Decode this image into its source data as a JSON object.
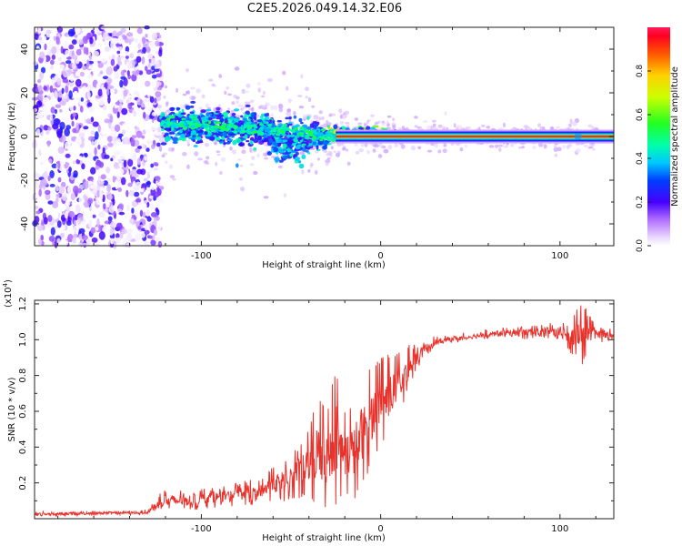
{
  "title": "C2E5.2026.049.14.32.E06",
  "colors": {
    "snr_line": "#e8322c",
    "axis": "#222222"
  },
  "chart_data": [
    {
      "type": "heatmap",
      "xlabel": "Height of straight line (km)",
      "ylabel": "Frequency (Hz)",
      "xlim": [
        -193,
        130
      ],
      "ylim": [
        -50,
        50
      ],
      "x_ticks": [
        -100,
        0,
        100
      ],
      "x_tick_labels": [
        "-100",
        "0",
        "100"
      ],
      "y_ticks": [
        -40,
        -20,
        0,
        20,
        40
      ],
      "y_tick_labels": [
        "-40",
        "-20",
        "0",
        "20",
        "40"
      ],
      "noise_region_x": [
        -193,
        -122
      ],
      "signal_track": [
        {
          "x": -122,
          "f": 6,
          "spread": 6
        },
        {
          "x": -100,
          "f": 5,
          "spread": 6
        },
        {
          "x": -80,
          "f": 4,
          "spread": 6
        },
        {
          "x": -60,
          "f": 3,
          "spread": 6
        },
        {
          "x": -45,
          "f": 2,
          "spread": 6
        },
        {
          "x": -35,
          "f": 0,
          "spread": 4
        },
        {
          "x": -25,
          "f": 1,
          "spread": 2
        },
        {
          "x": 0,
          "f": 1,
          "spread": 1.5
        },
        {
          "x": 20,
          "f": 0,
          "spread": 0.8
        },
        {
          "x": 130,
          "f": 0,
          "spread": 0.8
        }
      ],
      "colorbar": {
        "label": "Normalized spectral amplitude",
        "range": [
          0,
          1
        ],
        "ticks": [
          0.0,
          0.2,
          0.4,
          0.6,
          0.8
        ],
        "tick_labels": [
          "0.0",
          "0.2",
          "0.4",
          "0.6",
          "0.8"
        ]
      }
    },
    {
      "type": "line",
      "xlabel": "Height of straight line (km)",
      "ylabel": "SNR (10 * v/v)",
      "scale_label": "(x10",
      "scale_exponent": "4",
      "scale_suffix": ")",
      "xlim": [
        -193,
        130
      ],
      "ylim": [
        0,
        1.22
      ],
      "x_ticks": [
        -100,
        0,
        100
      ],
      "x_tick_labels": [
        "-100",
        "0",
        "100"
      ],
      "y_ticks": [
        0.2,
        0.4,
        0.6,
        0.8,
        1.0,
        1.2
      ],
      "y_tick_labels": [
        "0.2",
        "0.4",
        "0.6",
        "0.8",
        "1.0",
        "1.2"
      ],
      "series": [
        {
          "name": "SNR",
          "color": "#e8322c",
          "envelope_x": [
            -193,
            -130,
            -122,
            -110,
            -95,
            -80,
            -65,
            -52,
            -42,
            -35,
            -30,
            -25,
            -20,
            -15,
            -10,
            -5,
            0,
            5,
            10,
            15,
            20,
            25,
            30,
            40,
            60,
            80,
            100,
            108,
            112,
            116,
            120,
            130
          ],
          "envelope_low": [
            0.01,
            0.02,
            0.03,
            0.04,
            0.06,
            0.07,
            0.08,
            0.1,
            0.12,
            0.05,
            0.06,
            0.08,
            0.12,
            0.1,
            0.18,
            0.3,
            0.4,
            0.45,
            0.55,
            0.7,
            0.82,
            0.9,
            0.95,
            0.98,
            1.0,
            1.0,
            0.98,
            0.9,
            0.85,
            0.92,
            0.98,
            1.0
          ],
          "envelope_high": [
            0.04,
            0.05,
            0.17,
            0.16,
            0.17,
            0.2,
            0.25,
            0.35,
            0.45,
            0.7,
            0.6,
            0.85,
            0.6,
            0.65,
            0.8,
            0.85,
            0.9,
            0.92,
            0.95,
            0.98,
            0.97,
            1.0,
            1.02,
            1.03,
            1.06,
            1.08,
            1.1,
            1.15,
            1.22,
            1.15,
            1.08,
            1.06
          ]
        }
      ]
    }
  ]
}
